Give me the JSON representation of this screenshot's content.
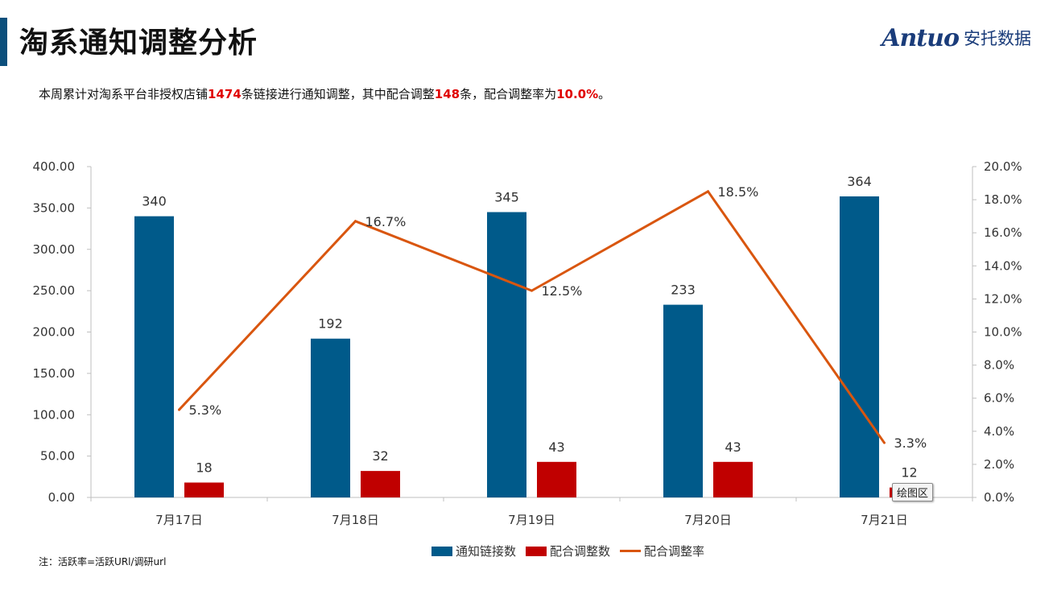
{
  "page": {
    "title": "淘系通知调整分析",
    "summary_parts": [
      "本周累计对淘系平台非授权店铺",
      "1474",
      "条链接进行通知调整，其中配合调整",
      "148",
      "条，配合调整率为",
      "10.0%",
      "。"
    ],
    "footnote": "注：活跃率=活跃URl/调研url",
    "tooltip": "绘图区"
  },
  "logo": {
    "brand": "Antuo",
    "cn": "安托数据",
    "color": "#1a3c7a"
  },
  "colors": {
    "accent": "#0b4f7c",
    "highlight": "#e00000"
  },
  "chart_data": {
    "type": "bar",
    "categories": [
      "7月17日",
      "7月18日",
      "7月19日",
      "7月20日",
      "7月21日"
    ],
    "series": [
      {
        "name": "通知链接数",
        "type": "bar",
        "axis": "left",
        "color": "#005a8a",
        "values": [
          340,
          192,
          345,
          233,
          364
        ],
        "labels": [
          "340",
          "192",
          "345",
          "233",
          "364"
        ]
      },
      {
        "name": "配合调整数",
        "type": "bar",
        "axis": "left",
        "color": "#c00000",
        "values": [
          18,
          32,
          43,
          43,
          12
        ],
        "labels": [
          "18",
          "32",
          "43",
          "43",
          "12"
        ]
      },
      {
        "name": "配合调整率",
        "type": "line",
        "axis": "right",
        "color": "#d9560f",
        "values": [
          5.3,
          16.7,
          12.5,
          18.5,
          3.3
        ],
        "labels": [
          "5.3%",
          "16.7%",
          "12.5%",
          "18.5%",
          "3.3%"
        ]
      }
    ],
    "y_left": {
      "min": 0,
      "max": 400,
      "ticks": [
        "0.00",
        "50.00",
        "100.00",
        "150.00",
        "200.00",
        "250.00",
        "300.00",
        "350.00",
        "400.00"
      ]
    },
    "y_right": {
      "min": 0,
      "max": 20,
      "ticks": [
        "0.0%",
        "2.0%",
        "4.0%",
        "6.0%",
        "8.0%",
        "10.0%",
        "12.0%",
        "14.0%",
        "16.0%",
        "18.0%",
        "20.0%"
      ]
    },
    "legend": "bottom",
    "grid": false
  }
}
